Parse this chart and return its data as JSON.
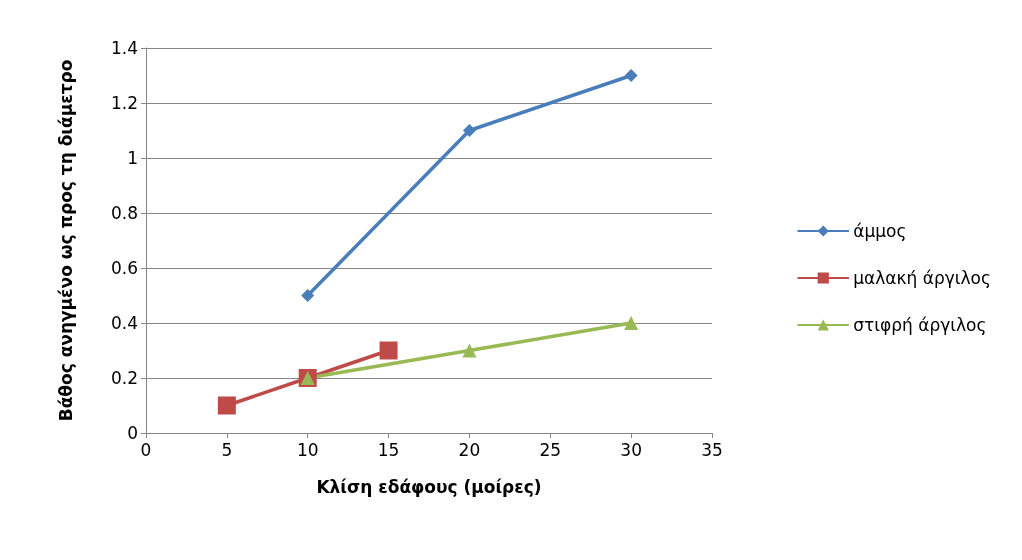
{
  "chart_data": {
    "type": "line",
    "xlabel": "Κλίση εδάφους (μοίρες)",
    "ylabel": "Βάθος ανηγμένο ως προς τη διάμετρο",
    "xlim": [
      0,
      35
    ],
    "xticks": [
      0,
      5,
      10,
      15,
      20,
      25,
      30,
      35
    ],
    "ylim": [
      0,
      1.4
    ],
    "yticks": [
      0,
      0.2,
      0.4,
      0.6,
      0.8,
      1,
      1.2,
      1.4
    ],
    "grid": "y",
    "legend": "right",
    "line_style": "solid",
    "series": [
      {
        "name": "άμμος",
        "color": "#4a7ebb",
        "marker": "diamond",
        "x": [
          10,
          20,
          30
        ],
        "values": [
          0.5,
          1.1,
          1.3
        ]
      },
      {
        "name": "μαλακή άργιλος",
        "color": "#be4b48",
        "marker": "square",
        "x": [
          5,
          10,
          15
        ],
        "values": [
          0.1,
          0.2,
          0.3
        ]
      },
      {
        "name": "στιφρή άργιλος",
        "color": "#98b954",
        "marker": "triangle",
        "x": [
          10,
          20,
          30
        ],
        "values": [
          0.2,
          0.3,
          0.4
        ]
      }
    ]
  }
}
